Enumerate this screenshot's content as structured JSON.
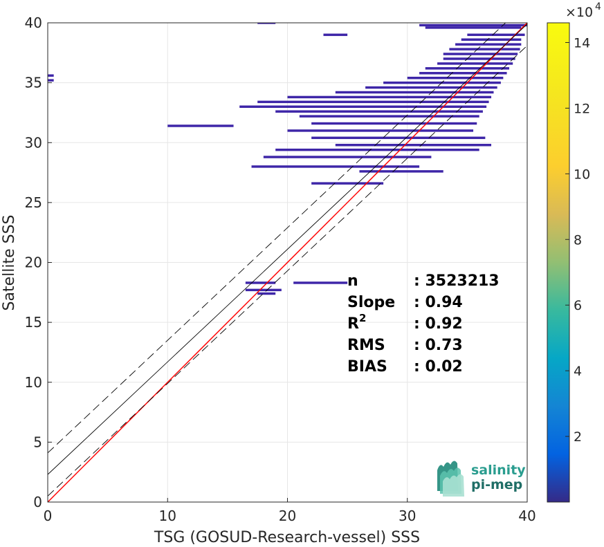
{
  "chart_data": {
    "type": "heatmap",
    "xlabel": "TSG (GOSUD-Research-vessel) SSS",
    "ylabel": "Satellite SSS",
    "xlim": [
      0,
      40
    ],
    "ylim": [
      0,
      40
    ],
    "x_ticks": [
      "0",
      "10",
      "20",
      "30",
      "40"
    ],
    "y_ticks": [
      "0",
      "5",
      "10",
      "15",
      "20",
      "25",
      "30",
      "35",
      "40"
    ],
    "grid": true,
    "colorbar": {
      "range": [
        0,
        14.6
      ],
      "ticks": [
        "2",
        "4",
        "6",
        "8",
        "10",
        "12",
        "14"
      ],
      "exponent_base": "×10",
      "exponent_power": "4",
      "colormap": "parula"
    },
    "reference_lines": [
      {
        "kind": "one-to-one",
        "color": "#ff0000",
        "intercept": 0,
        "slope": 1
      },
      {
        "kind": "regression",
        "color": "#000000",
        "intercept": 2.3,
        "slope": 0.94
      },
      {
        "kind": "regression-upper",
        "color": "#000000",
        "style": "dashed",
        "intercept": 4.1,
        "slope": 0.94
      },
      {
        "kind": "regression-lower",
        "color": "#000000",
        "style": "dashed",
        "intercept": 0.5,
        "slope": 0.94
      }
    ],
    "density_segments": [
      {
        "x0": 17.5,
        "x1": 19,
        "y": 40.0
      },
      {
        "x0": 31,
        "x1": 40,
        "y": 39.8
      },
      {
        "x0": 31.5,
        "x1": 39.5,
        "y": 39.6
      },
      {
        "x0": 23,
        "x1": 25,
        "y": 39.0
      },
      {
        "x0": 35,
        "x1": 39.8,
        "y": 39.0
      },
      {
        "x0": 34.5,
        "x1": 39.5,
        "y": 38.6
      },
      {
        "x0": 34,
        "x1": 39.5,
        "y": 38.2
      },
      {
        "x0": 33.5,
        "x1": 39.4,
        "y": 37.8
      },
      {
        "x0": 33,
        "x1": 39.2,
        "y": 37.4
      },
      {
        "x0": 33,
        "x1": 39,
        "y": 37.0
      },
      {
        "x0": 32.5,
        "x1": 38.8,
        "y": 36.6
      },
      {
        "x0": 31.5,
        "x1": 38.5,
        "y": 36.2
      },
      {
        "x0": 31,
        "x1": 38.3,
        "y": 35.8
      },
      {
        "x0": 30,
        "x1": 38,
        "y": 35.4
      },
      {
        "x0": 28,
        "x1": 37.8,
        "y": 35.0
      },
      {
        "x0": 26.5,
        "x1": 37.5,
        "y": 34.6
      },
      {
        "x0": 24,
        "x1": 37.2,
        "y": 34.2
      },
      {
        "x0": 20,
        "x1": 37,
        "y": 33.8
      },
      {
        "x0": 17.5,
        "x1": 36.8,
        "y": 33.4
      },
      {
        "x0": 16,
        "x1": 36.6,
        "y": 33.0
      },
      {
        "x0": 19,
        "x1": 36.3,
        "y": 32.6
      },
      {
        "x0": 21,
        "x1": 36,
        "y": 32.2
      },
      {
        "x0": 10,
        "x1": 15.5,
        "y": 31.4
      },
      {
        "x0": 22,
        "x1": 35.8,
        "y": 31.6
      },
      {
        "x0": 20,
        "x1": 35.5,
        "y": 31.0
      },
      {
        "x0": 22,
        "x1": 36.5,
        "y": 30.4
      },
      {
        "x0": 24,
        "x1": 37,
        "y": 29.8
      },
      {
        "x0": 19,
        "x1": 36,
        "y": 29.4
      },
      {
        "x0": 18,
        "x1": 32,
        "y": 28.8
      },
      {
        "x0": 17,
        "x1": 31,
        "y": 28.0
      },
      {
        "x0": 26,
        "x1": 33,
        "y": 27.6
      },
      {
        "x0": 22,
        "x1": 28,
        "y": 26.6
      },
      {
        "x0": 16.5,
        "x1": 19,
        "y": 18.3
      },
      {
        "x0": 20.5,
        "x1": 25,
        "y": 18.3
      },
      {
        "x0": 16.5,
        "x1": 19.5,
        "y": 17.7
      },
      {
        "x0": 17.5,
        "x1": 19,
        "y": 17.4
      },
      {
        "x0": 0,
        "x1": 0.5,
        "y": 35.6
      },
      {
        "x0": 0,
        "x1": 0.5,
        "y": 35.2
      }
    ],
    "stats": [
      {
        "label": "n",
        "sup": "",
        "value": ": 3523213"
      },
      {
        "label": "Slope",
        "sup": "",
        "value": ": 0.94"
      },
      {
        "label": "R",
        "sup": "2",
        "value": ": 0.92"
      },
      {
        "label": "RMS",
        "sup": "",
        "value": ": 0.73"
      },
      {
        "label": "BIAS",
        "sup": "",
        "value": ": 0.02"
      }
    ]
  },
  "logo": {
    "line1": "salinity",
    "line2": "pi-mep"
  },
  "colors": {
    "one_to_one": "#ff0000",
    "regression": "#000000",
    "density_low": "#3e26a8",
    "logo_teal": "#2a9d8f"
  }
}
